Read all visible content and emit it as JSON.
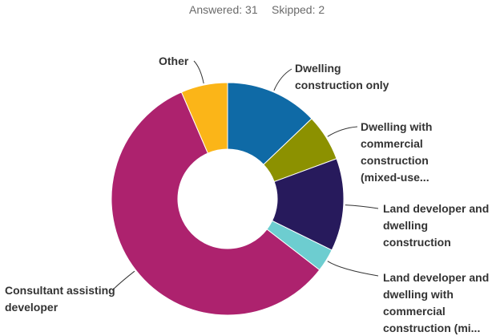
{
  "chart_data": {
    "type": "donut",
    "answered": "Answered: 31",
    "skipped": "Skipped: 2",
    "categories": [
      "Dwelling construction only",
      "Dwelling with commercial construction (mixed-use...",
      "Land developer and dwelling construction",
      "Land developer and dwelling with commercial construction (mi...",
      "Consultant assisting developer",
      "Other"
    ],
    "values": [
      12.9,
      6.5,
      12.9,
      3.2,
      58.1,
      6.5
    ],
    "colors": [
      "#0f6aa6",
      "#8c9100",
      "#271a5c",
      "#6dcdd0",
      "#ad226e",
      "#fbb518"
    ]
  }
}
